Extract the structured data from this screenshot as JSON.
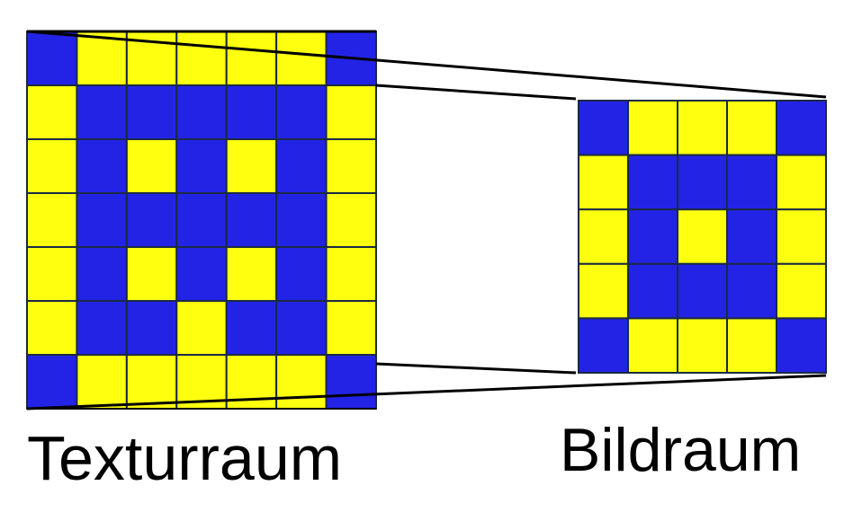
{
  "labels": {
    "texture_space": "Texturraum",
    "image_space": "Bildraum"
  },
  "colors": {
    "blue": "#2323e6",
    "yellow": "#ffff10",
    "grid_line": "#1a2a44",
    "outline": "#000000"
  },
  "texture_grid": {
    "rows": 7,
    "cols": 7,
    "pattern": [
      "BYYYYYB",
      "YBBBBBY",
      "YBYBYBY",
      "YBBBBBY",
      "YBYBYBY",
      "YBBYBBY",
      "BYYYYYB"
    ]
  },
  "image_grid": {
    "rows": 5,
    "cols": 5,
    "pattern": [
      "BYYYB",
      "YBBBY",
      "YBYBY",
      "YBBBY",
      "BYYYB"
    ]
  }
}
